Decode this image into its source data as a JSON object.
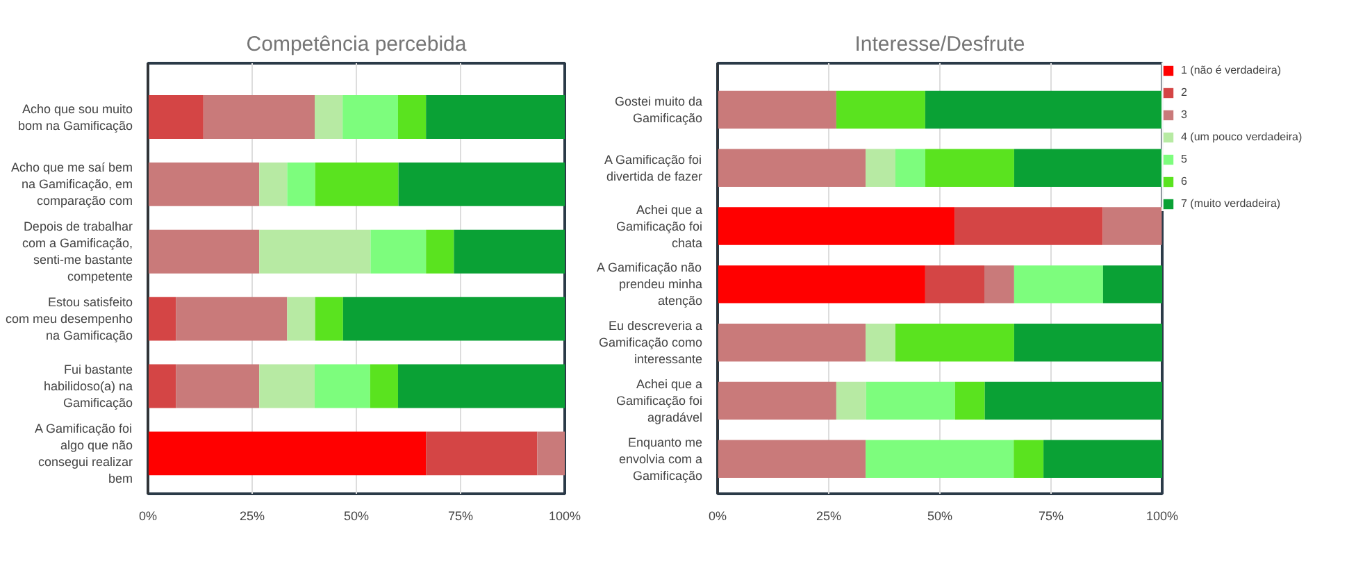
{
  "chart_data": [
    {
      "type": "bar",
      "orientation": "horizontal",
      "stacked": true,
      "title": "Competência percebida",
      "categories": [
        "Acho que sou muito bom na Gamificação",
        "Acho que me saí bem na Gamificação, em comparação com",
        "Depois de trabalhar com a Gamificação, senti-me bastante competente",
        "Estou satisfeito com meu desempenho na Gamificação",
        "Fui bastante habilidoso(a) na Gamificação",
        "A Gamificação foi algo que não consegui realizar bem"
      ],
      "series": [
        {
          "color": "#ff0000",
          "values": [
            null,
            null,
            null,
            null,
            null,
            66.7
          ]
        },
        {
          "color": "#d44545",
          "values": [
            13.3,
            null,
            null,
            6.7,
            6.7,
            26.7
          ]
        },
        {
          "color": "#c97a7a",
          "values": [
            26.7,
            26.7,
            26.7,
            26.7,
            20,
            6.7
          ]
        },
        {
          "color": "#b7eaa3",
          "values": [
            6.7,
            6.7,
            26.7,
            6.7,
            13.3,
            null
          ]
        },
        {
          "color": "#7dfd7d",
          "values": [
            13.3,
            6.7,
            13.3,
            null,
            13.3,
            null
          ]
        },
        {
          "color": "#5ae31f",
          "values": [
            6.7,
            20,
            6.7,
            6.7,
            6.7,
            null
          ]
        },
        {
          "color": "#0aa135",
          "values": [
            33.3,
            40,
            26.7,
            53.3,
            40,
            null
          ]
        }
      ],
      "xlim": [
        0,
        100
      ],
      "xticks": [
        {
          "value": 0,
          "label": "0%"
        },
        {
          "value": 25,
          "label": "25%"
        },
        {
          "value": 50,
          "label": "50%"
        },
        {
          "value": 75,
          "label": "75%"
        },
        {
          "value": 100,
          "label": "100%"
        }
      ],
      "grid": "x",
      "legend": false
    },
    {
      "type": "bar",
      "orientation": "horizontal",
      "stacked": true,
      "title": "Interesse/Desfrute",
      "categories": [
        "Gostei muito da Gamificação",
        "A Gamificação foi divertida de fazer",
        "Achei que a Gamificação foi chata",
        "A Gamificação não prendeu minha atenção",
        "Eu descreveria a Gamificação como interessante",
        "Achei que a Gamificação foi agradável",
        "Enquanto me envolvia com a Gamificação"
      ],
      "series": [
        {
          "name": "1 (não é verdadeira)",
          "color": "#ff0000",
          "values": [
            null,
            null,
            53.3,
            46.7,
            null,
            null,
            null
          ]
        },
        {
          "name": "2",
          "color": "#d44545",
          "values": [
            null,
            null,
            33.3,
            13.3,
            null,
            null,
            null
          ]
        },
        {
          "name": "3",
          "color": "#c97a7a",
          "values": [
            26.7,
            33.3,
            13.3,
            6.7,
            33.3,
            26.7,
            33.3
          ]
        },
        {
          "name": "4 (um pouco verdadeira)",
          "color": "#b7eaa3",
          "values": [
            null,
            6.7,
            null,
            null,
            6.7,
            6.7,
            null
          ]
        },
        {
          "name": "5",
          "color": "#7dfd7d",
          "values": [
            null,
            6.7,
            null,
            20,
            null,
            20,
            33.3
          ]
        },
        {
          "name": "6",
          "color": "#5ae31f",
          "values": [
            20,
            20,
            null,
            null,
            26.7,
            6.7,
            6.7
          ]
        },
        {
          "name": "7 (muito verdadeira)",
          "color": "#0aa135",
          "values": [
            53.3,
            33.3,
            null,
            13.3,
            33.3,
            40,
            26.7
          ]
        }
      ],
      "xlim": [
        0,
        100
      ],
      "xticks": [
        {
          "value": 0,
          "label": "0%"
        },
        {
          "value": 25,
          "label": "25%"
        },
        {
          "value": 50,
          "label": "50%"
        },
        {
          "value": 75,
          "label": "75%"
        },
        {
          "value": 100,
          "label": "100%"
        }
      ],
      "grid": "x",
      "legend": "right"
    }
  ]
}
